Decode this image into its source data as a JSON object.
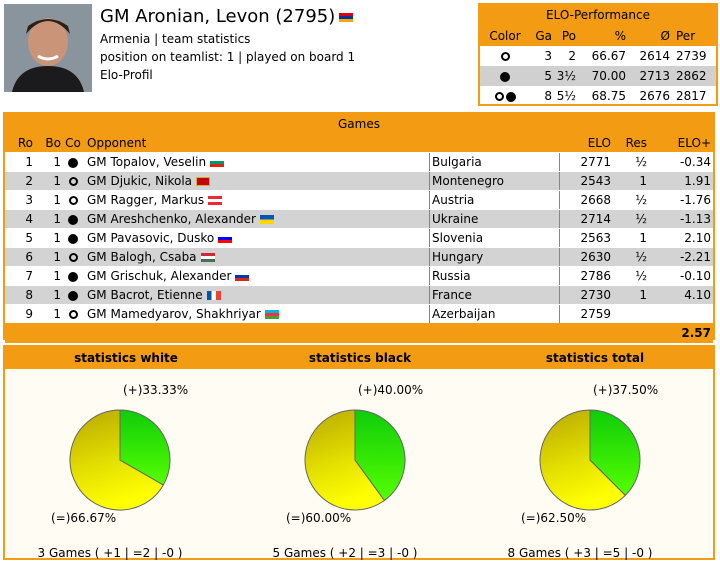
{
  "player": {
    "name": "GM Aronian, Levon (2795)",
    "federation": "Armenia",
    "separator": "|",
    "team_stats_link": "team statistics",
    "position_line": "position on teamlist: 1 | played on board 1",
    "elo_profile_link": "Elo-Profil"
  },
  "elo_performance": {
    "title": "ELO-Performance",
    "headers": {
      "color": "Color",
      "games": "Ga",
      "points": "Po",
      "percent": "%",
      "avg": "Ø",
      "perf": "Per"
    },
    "rows": [
      {
        "color": "white",
        "games": "3",
        "points": "2",
        "percent": "66.67",
        "avg": "2614",
        "perf": "2739"
      },
      {
        "color": "black",
        "games": "5",
        "points": "3½",
        "percent": "70.00",
        "avg": "2713",
        "perf": "2862"
      },
      {
        "color": "both",
        "games": "8",
        "points": "5½",
        "percent": "68.75",
        "avg": "2676",
        "perf": "2817"
      }
    ]
  },
  "games": {
    "title": "Games",
    "headers": {
      "round": "Ro",
      "board": "Bo",
      "color": "Co",
      "opponent": "Opponent",
      "elo": "ELO",
      "result": "Res",
      "elo_diff": "ELO+"
    },
    "rows": [
      {
        "round": "1",
        "board": "1",
        "color": "black",
        "opponent": "GM Topalov, Veselin",
        "flag": "f-bul",
        "federation": "Bulgaria",
        "elo": "2771",
        "result": "½",
        "diff": "-0.34"
      },
      {
        "round": "2",
        "board": "1",
        "color": "white",
        "opponent": "GM Djukic, Nikola",
        "flag": "f-mne",
        "federation": "Montenegro",
        "elo": "2543",
        "result": "1",
        "diff": "1.91"
      },
      {
        "round": "3",
        "board": "1",
        "color": "white",
        "opponent": "GM Ragger, Markus",
        "flag": "f-aut",
        "federation": "Austria",
        "elo": "2668",
        "result": "½",
        "diff": "-1.76"
      },
      {
        "round": "4",
        "board": "1",
        "color": "black",
        "opponent": "GM Areshchenko, Alexander",
        "flag": "f-ukr",
        "federation": "Ukraine",
        "elo": "2714",
        "result": "½",
        "diff": "-1.13"
      },
      {
        "round": "5",
        "board": "1",
        "color": "black",
        "opponent": "GM Pavasovic, Dusko",
        "flag": "f-slo",
        "federation": "Slovenia",
        "elo": "2563",
        "result": "1",
        "diff": "2.10"
      },
      {
        "round": "6",
        "board": "1",
        "color": "white",
        "opponent": "GM Balogh, Csaba",
        "flag": "f-hun",
        "federation": "Hungary",
        "elo": "2630",
        "result": "½",
        "diff": "-2.21"
      },
      {
        "round": "7",
        "board": "1",
        "color": "black",
        "opponent": "GM Grischuk, Alexander",
        "flag": "f-rus",
        "federation": "Russia",
        "elo": "2786",
        "result": "½",
        "diff": "-0.10"
      },
      {
        "round": "8",
        "board": "1",
        "color": "black",
        "opponent": "GM Bacrot, Etienne",
        "flag": "f-fra",
        "federation": "France",
        "elo": "2730",
        "result": "1",
        "diff": "4.10"
      },
      {
        "round": "9",
        "board": "1",
        "color": "white",
        "opponent": "GM Mamedyarov, Shakhriyar",
        "flag": "f-aze",
        "federation": "Azerbaijan",
        "elo": "2759",
        "result": "",
        "diff": ""
      }
    ],
    "total_diff": "2.57"
  },
  "statistics": [
    {
      "title": "statistics white",
      "win_label": "(+)33.33%",
      "draw_label": "(=)66.67%",
      "win_pct": 33.33,
      "draw_pct": 66.67,
      "summary": "3 Games ( +1 | =2 | -0 )"
    },
    {
      "title": "statistics black",
      "win_label": "(+)40.00%",
      "draw_label": "(=)60.00%",
      "win_pct": 40.0,
      "draw_pct": 60.0,
      "summary": "5 Games ( +2 | =3 | -0 )"
    },
    {
      "title": "statistics total",
      "win_label": "(+)37.50%",
      "draw_label": "(=)62.50%",
      "win_pct": 37.5,
      "draw_pct": 62.5,
      "summary": "8 Games ( +3 | =5 | -0 )"
    }
  ],
  "colors": {
    "accent": "#f39b12",
    "win": "#22dd00",
    "draw": "#e8e800",
    "row_alt": "#d3d3d3"
  }
}
